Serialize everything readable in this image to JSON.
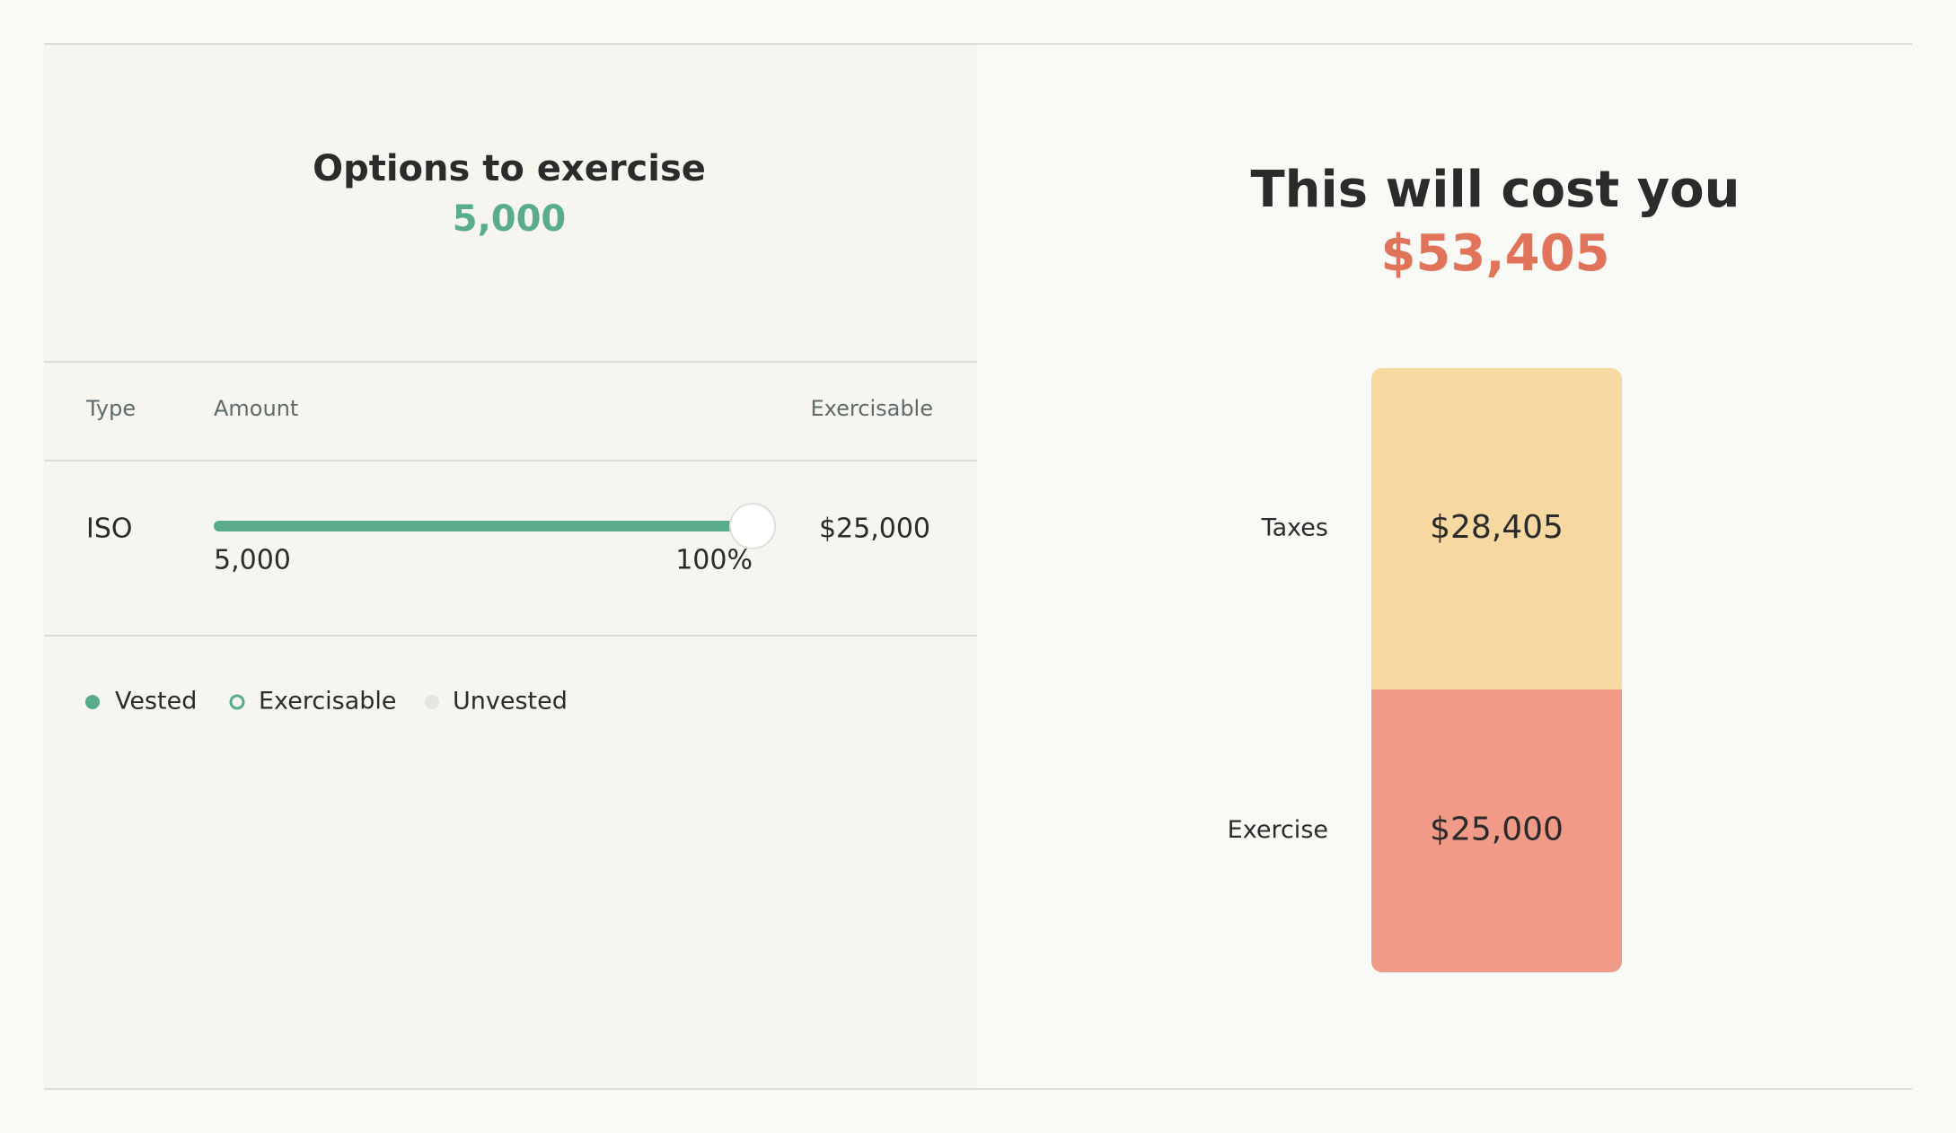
{
  "options": {
    "title": "Options to exercise",
    "count": "5,000",
    "table": {
      "headers": [
        "Type",
        "Amount",
        "Exercisable"
      ],
      "rows": [
        {
          "type": "ISO",
          "amount": "5,000",
          "slider": {
            "value": 100,
            "label": "100%"
          },
          "exercisable": "$25,000"
        }
      ]
    },
    "legend": [
      "Vested",
      "Exercisable",
      "Unvested"
    ]
  },
  "chart_data": {
    "type": "stacked-bar",
    "title": "This will cost you",
    "subtitle": "$53,405",
    "series": [
      {
        "name": "Exercise",
        "color": "#f09a87",
        "values": [
          25000
        ],
        "value_labels": [
          "$25,000"
        ]
      },
      {
        "name": "Taxes",
        "color": "#f7d8a1",
        "values": [
          28405
        ],
        "value_labels": [
          "$28,405"
        ]
      }
    ]
  }
}
